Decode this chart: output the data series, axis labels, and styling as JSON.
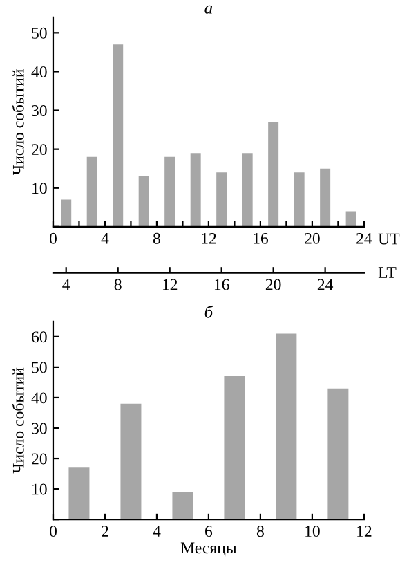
{
  "chart_data": [
    {
      "type": "bar",
      "title": "а",
      "ylabel": "Число событий",
      "xlabel": "UT",
      "x2label": "LT",
      "x": [
        1,
        3,
        5,
        7,
        9,
        11,
        13,
        15,
        17,
        19,
        21,
        23
      ],
      "values": [
        7,
        18,
        47,
        13,
        18,
        19,
        14,
        19,
        27,
        14,
        15,
        4
      ],
      "color": "#a6a6a6",
      "xlim": [
        0,
        24
      ],
      "xticks": [
        0,
        {
          "value": 2,
          "label": null
        },
        4,
        {
          "value": 6,
          "label": null
        },
        8,
        {
          "value": 10,
          "label": null
        },
        12,
        {
          "value": 14,
          "label": null
        },
        16,
        {
          "value": 18,
          "label": null
        },
        20,
        {
          "value": 22,
          "label": null
        },
        24
      ],
      "x2lim": [
        3,
        27
      ],
      "x2ticks": [
        4,
        8,
        12,
        16,
        20,
        24
      ],
      "ylim": [
        0,
        54
      ],
      "yticks": [
        {
          "value": 0,
          "label": null
        },
        10,
        20,
        30,
        40,
        50
      ],
      "grid": false,
      "legend": false
    },
    {
      "type": "bar",
      "title": "б",
      "ylabel": "Число событий",
      "xlabel": "Месяцы",
      "x": [
        1,
        3,
        5,
        7,
        9,
        11
      ],
      "values": [
        17,
        38,
        9,
        47,
        61,
        43
      ],
      "color": "#a6a6a6",
      "xlim": [
        0,
        12
      ],
      "xticks": [
        0,
        2,
        4,
        6,
        8,
        10,
        12
      ],
      "ylim": [
        0,
        65
      ],
      "yticks": [
        {
          "value": 0,
          "label": null
        },
        10,
        20,
        30,
        40,
        50,
        60
      ],
      "grid": false,
      "legend": false
    }
  ]
}
